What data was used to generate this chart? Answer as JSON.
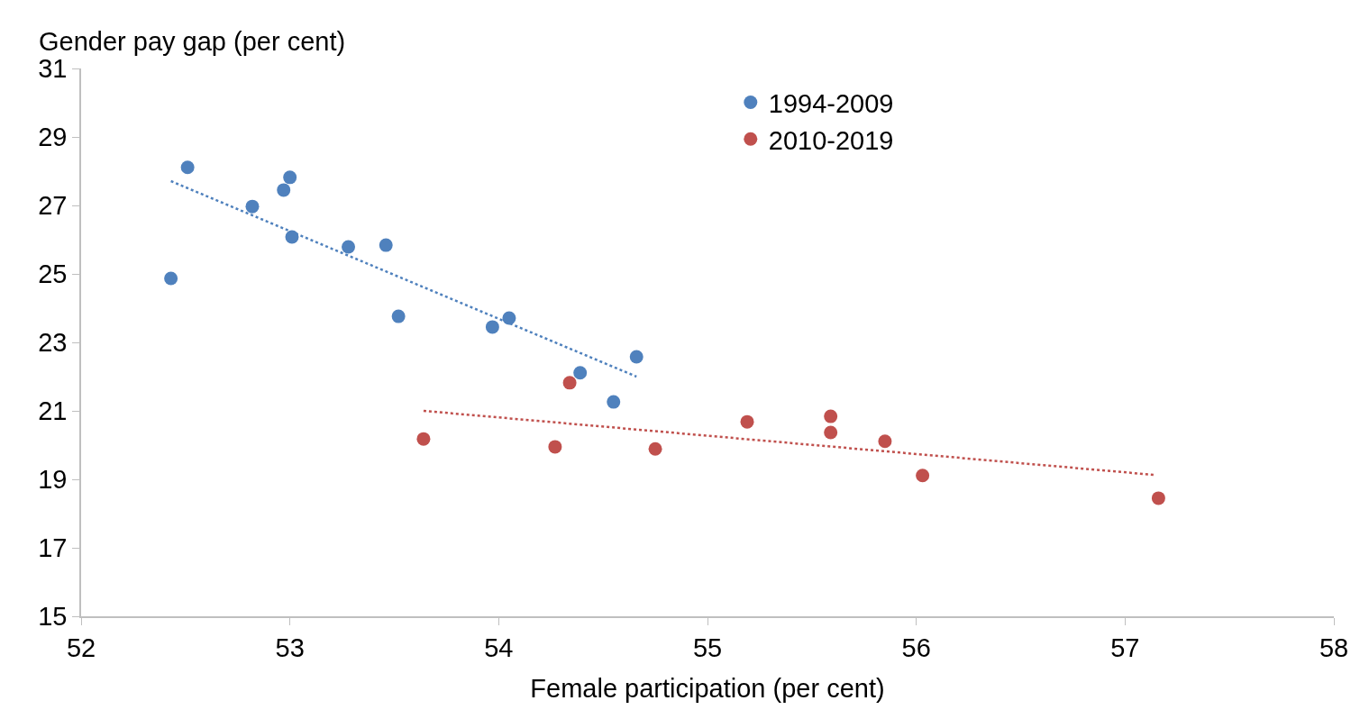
{
  "chart_data": {
    "type": "scatter",
    "xlabel": "Female participation (per cent)",
    "ylabel": "Gender pay gap (per cent)",
    "xlim": [
      52,
      58
    ],
    "xticks": [
      52,
      53,
      54,
      55,
      56,
      57,
      58
    ],
    "ylim": [
      15,
      31
    ],
    "yticks": [
      15,
      17,
      19,
      21,
      23,
      25,
      27,
      29,
      31
    ],
    "grid": false,
    "legend": "top",
    "marker": "circle",
    "series": [
      {
        "name": "1994-2009",
        "color": "#4f81bd",
        "x": [
          52.43,
          52.51,
          52.82,
          52.97,
          53.0,
          53.01,
          53.28,
          53.46,
          53.52,
          53.97,
          54.05,
          54.39,
          54.55,
          54.66
        ],
        "values": [
          24.87,
          28.11,
          26.97,
          27.45,
          27.82,
          26.08,
          25.79,
          25.84,
          23.76,
          23.45,
          23.71,
          22.11,
          21.26,
          22.58
        ]
      },
      {
        "name": "2010-2019",
        "color": "#c0504d",
        "x": [
          53.64,
          54.27,
          54.34,
          54.75,
          55.19,
          55.59,
          55.59,
          55.85,
          56.03,
          57.16
        ],
        "values": [
          20.18,
          19.95,
          21.82,
          19.89,
          20.68,
          20.84,
          20.37,
          20.11,
          19.11,
          18.45
        ]
      },
      {
        "type": "line",
        "color": "#4f81bd",
        "line_style": "dotted",
        "marker": "none",
        "x": [
          52.43,
          54.66
        ],
        "values": [
          27.71,
          22.0
        ]
      },
      {
        "type": "line",
        "color": "#c0504d",
        "line_style": "dotted",
        "marker": "none",
        "x": [
          53.64,
          57.14
        ],
        "values": [
          21.0,
          19.13
        ]
      }
    ]
  }
}
